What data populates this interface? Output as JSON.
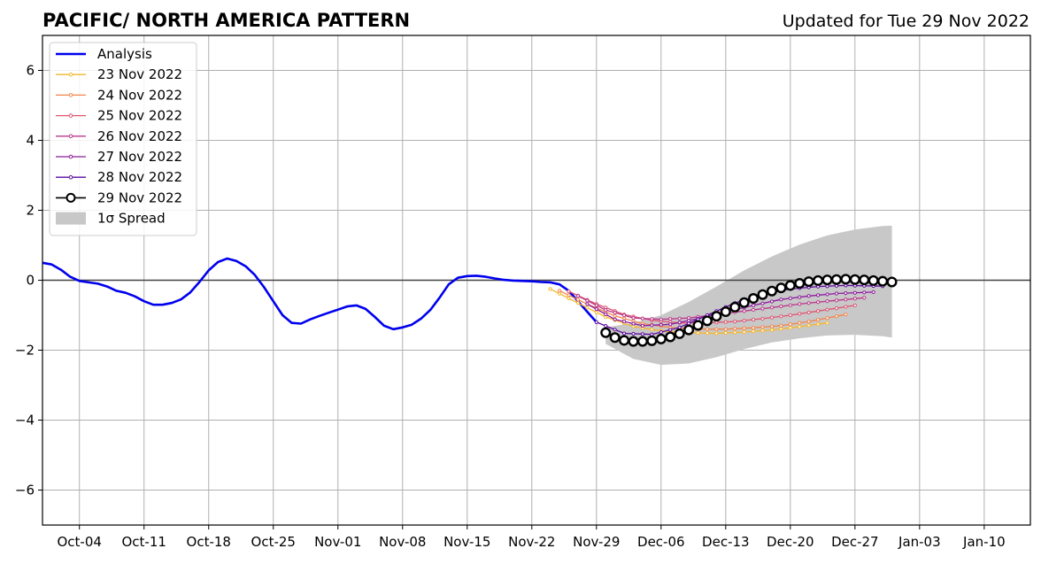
{
  "chart_data": {
    "type": "line",
    "title": "PACIFIC/ NORTH AMERICA PATTERN",
    "subtitle": "Updated for Tue 29 Nov 2022",
    "xlabel": "",
    "ylabel": "",
    "x_axis": {
      "start_date": "2022-09-30",
      "end_date": "2023-01-15",
      "tick_dates": [
        "2022-10-04",
        "2022-10-11",
        "2022-10-18",
        "2022-10-25",
        "2022-11-01",
        "2022-11-08",
        "2022-11-15",
        "2022-11-22",
        "2022-11-29",
        "2022-12-06",
        "2022-12-13",
        "2022-12-20",
        "2022-12-27",
        "2023-01-03",
        "2023-01-10"
      ],
      "tick_labels": [
        "Oct-04",
        "Oct-11",
        "Oct-18",
        "Oct-25",
        "Nov-01",
        "Nov-08",
        "Nov-15",
        "Nov-22",
        "Nov-29",
        "Dec-06",
        "Dec-13",
        "Dec-20",
        "Dec-27",
        "Jan-03",
        "Jan-10"
      ]
    },
    "ylim": [
      -7,
      7
    ],
    "y_ticks": [
      -6,
      -4,
      -2,
      0,
      2,
      4,
      6
    ],
    "y_tick_labels": [
      "−6",
      "−4",
      "−2",
      "0",
      "2",
      "4",
      "6"
    ],
    "grid": true,
    "legend_position": "top-left",
    "analysis": {
      "name": "Analysis",
      "color": "#0000ee",
      "points": [
        [
          "2022-09-30",
          0.5
        ],
        [
          "2022-10-01",
          0.45
        ],
        [
          "2022-10-02",
          0.3
        ],
        [
          "2022-10-03",
          0.1
        ],
        [
          "2022-10-04",
          -0.02
        ],
        [
          "2022-10-05",
          -0.06
        ],
        [
          "2022-10-06",
          -0.1
        ],
        [
          "2022-10-07",
          -0.18
        ],
        [
          "2022-10-08",
          -0.3
        ],
        [
          "2022-10-09",
          -0.36
        ],
        [
          "2022-10-10",
          -0.46
        ],
        [
          "2022-10-11",
          -0.6
        ],
        [
          "2022-10-12",
          -0.7
        ],
        [
          "2022-10-13",
          -0.7
        ],
        [
          "2022-10-14",
          -0.65
        ],
        [
          "2022-10-15",
          -0.55
        ],
        [
          "2022-10-16",
          -0.35
        ],
        [
          "2022-10-17",
          -0.05
        ],
        [
          "2022-10-18",
          0.28
        ],
        [
          "2022-10-19",
          0.52
        ],
        [
          "2022-10-20",
          0.62
        ],
        [
          "2022-10-21",
          0.55
        ],
        [
          "2022-10-22",
          0.4
        ],
        [
          "2022-10-23",
          0.15
        ],
        [
          "2022-10-24",
          -0.2
        ],
        [
          "2022-10-25",
          -0.6
        ],
        [
          "2022-10-26",
          -1.0
        ],
        [
          "2022-10-27",
          -1.22
        ],
        [
          "2022-10-28",
          -1.24
        ],
        [
          "2022-10-29",
          -1.12
        ],
        [
          "2022-10-30",
          -1.02
        ],
        [
          "2022-10-31",
          -0.93
        ],
        [
          "2022-11-01",
          -0.84
        ],
        [
          "2022-11-02",
          -0.75
        ],
        [
          "2022-11-03",
          -0.72
        ],
        [
          "2022-11-04",
          -0.82
        ],
        [
          "2022-11-05",
          -1.05
        ],
        [
          "2022-11-06",
          -1.3
        ],
        [
          "2022-11-07",
          -1.4
        ],
        [
          "2022-11-08",
          -1.35
        ],
        [
          "2022-11-09",
          -1.27
        ],
        [
          "2022-11-10",
          -1.1
        ],
        [
          "2022-11-11",
          -0.85
        ],
        [
          "2022-11-12",
          -0.5
        ],
        [
          "2022-11-13",
          -0.12
        ],
        [
          "2022-11-14",
          0.07
        ],
        [
          "2022-11-15",
          0.12
        ],
        [
          "2022-11-16",
          0.13
        ],
        [
          "2022-11-17",
          0.1
        ],
        [
          "2022-11-18",
          0.05
        ],
        [
          "2022-11-19",
          0.01
        ],
        [
          "2022-11-20",
          -0.01
        ],
        [
          "2022-11-21",
          -0.02
        ],
        [
          "2022-11-22",
          -0.03
        ],
        [
          "2022-11-23",
          -0.05
        ],
        [
          "2022-11-24",
          -0.06
        ],
        [
          "2022-11-25",
          -0.12
        ],
        [
          "2022-11-26",
          -0.3
        ],
        [
          "2022-11-27",
          -0.6
        ],
        [
          "2022-11-28",
          -0.9
        ],
        [
          "2022-11-29",
          -1.2
        ]
      ]
    },
    "forecasts": [
      {
        "name": "23 Nov 2022",
        "color": "#f5b72b",
        "points": [
          [
            "2022-11-24",
            -0.25
          ],
          [
            "2022-11-27",
            -0.65
          ],
          [
            "2022-11-30",
            -1.05
          ],
          [
            "2022-12-03",
            -1.32
          ],
          [
            "2022-12-06",
            -1.45
          ],
          [
            "2022-12-09",
            -1.5
          ],
          [
            "2022-12-12",
            -1.52
          ],
          [
            "2022-12-15",
            -1.48
          ],
          [
            "2022-12-18",
            -1.42
          ],
          [
            "2022-12-21",
            -1.33
          ],
          [
            "2022-12-24",
            -1.22
          ]
        ]
      },
      {
        "name": "24 Nov 2022",
        "color": "#f2844b",
        "points": [
          [
            "2022-11-25",
            -0.3
          ],
          [
            "2022-11-28",
            -0.68
          ],
          [
            "2022-12-01",
            -1.02
          ],
          [
            "2022-12-04",
            -1.24
          ],
          [
            "2022-12-07",
            -1.35
          ],
          [
            "2022-12-10",
            -1.4
          ],
          [
            "2022-12-13",
            -1.4
          ],
          [
            "2022-12-16",
            -1.36
          ],
          [
            "2022-12-19",
            -1.3
          ],
          [
            "2022-12-22",
            -1.18
          ],
          [
            "2022-12-26",
            -0.98
          ]
        ]
      },
      {
        "name": "25 Nov 2022",
        "color": "#de5472",
        "points": [
          [
            "2022-11-26",
            -0.32
          ],
          [
            "2022-11-29",
            -0.68
          ],
          [
            "2022-12-02",
            -0.98
          ],
          [
            "2022-12-05",
            -1.15
          ],
          [
            "2022-12-08",
            -1.22
          ],
          [
            "2022-12-11",
            -1.22
          ],
          [
            "2022-12-14",
            -1.18
          ],
          [
            "2022-12-17",
            -1.1
          ],
          [
            "2022-12-20",
            -1.0
          ],
          [
            "2022-12-23",
            -0.88
          ],
          [
            "2022-12-27",
            -0.72
          ]
        ]
      },
      {
        "name": "26 Nov 2022",
        "color": "#b83a8a",
        "points": [
          [
            "2022-11-27",
            -0.45
          ],
          [
            "2022-11-30",
            -0.85
          ],
          [
            "2022-12-03",
            -1.08
          ],
          [
            "2022-12-06",
            -1.12
          ],
          [
            "2022-12-09",
            -1.08
          ],
          [
            "2022-12-12",
            -0.98
          ],
          [
            "2022-12-15",
            -0.88
          ],
          [
            "2022-12-18",
            -0.78
          ],
          [
            "2022-12-21",
            -0.68
          ],
          [
            "2022-12-24",
            -0.6
          ],
          [
            "2022-12-28",
            -0.5
          ]
        ]
      },
      {
        "name": "27 Nov 2022",
        "color": "#8b1a9b",
        "points": [
          [
            "2022-11-28",
            -0.68
          ],
          [
            "2022-12-01",
            -1.12
          ],
          [
            "2022-12-04",
            -1.3
          ],
          [
            "2022-12-07",
            -1.26
          ],
          [
            "2022-12-10",
            -1.1
          ],
          [
            "2022-12-13",
            -0.9
          ],
          [
            "2022-12-16",
            -0.72
          ],
          [
            "2022-12-19",
            -0.55
          ],
          [
            "2022-12-22",
            -0.45
          ],
          [
            "2022-12-25",
            -0.38
          ],
          [
            "2022-12-29",
            -0.34
          ]
        ]
      },
      {
        "name": "28 Nov 2022",
        "color": "#5a0a9e",
        "points": [
          [
            "2022-11-29",
            -1.2
          ],
          [
            "2022-12-02",
            -1.52
          ],
          [
            "2022-12-05",
            -1.55
          ],
          [
            "2022-12-08",
            -1.35
          ],
          [
            "2022-12-11",
            -1.0
          ],
          [
            "2022-12-14",
            -0.65
          ],
          [
            "2022-12-17",
            -0.4
          ],
          [
            "2022-12-20",
            -0.25
          ],
          [
            "2022-12-23",
            -0.18
          ],
          [
            "2022-12-26",
            -0.15
          ],
          [
            "2022-12-30",
            -0.17
          ]
        ]
      }
    ],
    "current_forecast": {
      "name": "29 Nov 2022",
      "color": "#000000",
      "points": [
        [
          "2022-11-30",
          -1.5
        ],
        [
          "2022-12-01",
          -1.64
        ],
        [
          "2022-12-02",
          -1.72
        ],
        [
          "2022-12-03",
          -1.75
        ],
        [
          "2022-12-04",
          -1.75
        ],
        [
          "2022-12-05",
          -1.73
        ],
        [
          "2022-12-06",
          -1.68
        ],
        [
          "2022-12-07",
          -1.62
        ],
        [
          "2022-12-08",
          -1.53
        ],
        [
          "2022-12-09",
          -1.42
        ],
        [
          "2022-12-10",
          -1.29
        ],
        [
          "2022-12-11",
          -1.16
        ],
        [
          "2022-12-12",
          -1.03
        ],
        [
          "2022-12-13",
          -0.9
        ],
        [
          "2022-12-14",
          -0.77
        ],
        [
          "2022-12-15",
          -0.64
        ],
        [
          "2022-12-16",
          -0.52
        ],
        [
          "2022-12-17",
          -0.41
        ],
        [
          "2022-12-18",
          -0.31
        ],
        [
          "2022-12-19",
          -0.22
        ],
        [
          "2022-12-20",
          -0.15
        ],
        [
          "2022-12-21",
          -0.09
        ],
        [
          "2022-12-22",
          -0.04
        ],
        [
          "2022-12-23",
          -0.01
        ],
        [
          "2022-12-24",
          0.01
        ],
        [
          "2022-12-25",
          0.02
        ],
        [
          "2022-12-26",
          0.03
        ],
        [
          "2022-12-27",
          0.02
        ],
        [
          "2022-12-28",
          0.01
        ],
        [
          "2022-12-29",
          -0.01
        ],
        [
          "2022-12-30",
          -0.03
        ],
        [
          "2022-12-31",
          -0.05
        ]
      ]
    },
    "spread": {
      "name": "1σ Spread",
      "color": "#c8c8c8",
      "upper": [
        [
          "2022-11-30",
          -1.35
        ],
        [
          "2022-12-03",
          -1.22
        ],
        [
          "2022-12-06",
          -1.0
        ],
        [
          "2022-12-09",
          -0.62
        ],
        [
          "2022-12-12",
          -0.18
        ],
        [
          "2022-12-15",
          0.28
        ],
        [
          "2022-12-18",
          0.68
        ],
        [
          "2022-12-21",
          1.02
        ],
        [
          "2022-12-24",
          1.28
        ],
        [
          "2022-12-27",
          1.45
        ],
        [
          "2022-12-30",
          1.55
        ],
        [
          "2022-12-31",
          1.56
        ]
      ],
      "lower": [
        [
          "2022-11-30",
          -1.82
        ],
        [
          "2022-12-03",
          -2.25
        ],
        [
          "2022-12-06",
          -2.42
        ],
        [
          "2022-12-09",
          -2.38
        ],
        [
          "2022-12-12",
          -2.2
        ],
        [
          "2022-12-15",
          -1.97
        ],
        [
          "2022-12-18",
          -1.78
        ],
        [
          "2022-12-21",
          -1.66
        ],
        [
          "2022-12-24",
          -1.58
        ],
        [
          "2022-12-27",
          -1.56
        ],
        [
          "2022-12-30",
          -1.6
        ],
        [
          "2022-12-31",
          -1.64
        ]
      ]
    },
    "legend": {
      "analysis": "Analysis",
      "spread": "1σ Spread"
    }
  }
}
